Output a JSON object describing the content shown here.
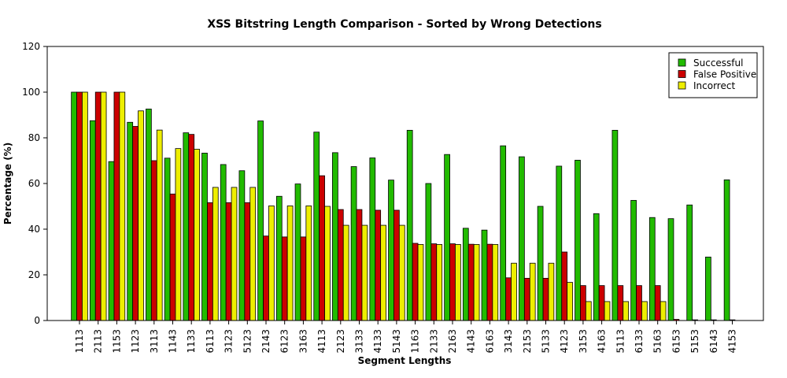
{
  "chart_data": {
    "type": "bar",
    "title": "XSS Bitstring Length Comparison - Sorted by Wrong Detections",
    "xlabel": "Segment Lengths",
    "ylabel": "Percentage (%)",
    "ylim": [
      0,
      120
    ],
    "yticks": [
      "0",
      "20",
      "40",
      "60",
      "80",
      "100",
      "120"
    ],
    "legend_position": "top-right",
    "categories": [
      "1113",
      "2113",
      "1153",
      "1123",
      "3113",
      "1143",
      "1133",
      "6113",
      "3123",
      "5123",
      "2143",
      "6123",
      "3163",
      "4113",
      "2123",
      "3133",
      "4133",
      "5143",
      "1163",
      "2133",
      "2163",
      "4143",
      "6163",
      "3143",
      "2153",
      "5133",
      "4123",
      "3153",
      "4163",
      "5113",
      "6133",
      "5163",
      "6153",
      "5153",
      "6143",
      "4153"
    ],
    "series": [
      {
        "name": "Successful",
        "color": "#22bb00",
        "values": [
          100,
          87.5,
          69.6,
          86.8,
          92.6,
          71.1,
          82.2,
          73.3,
          68.3,
          65.6,
          87.4,
          54.4,
          59.8,
          82.5,
          73.5,
          67.4,
          71.2,
          61.5,
          83.3,
          60,
          72.7,
          40.4,
          39.6,
          76.5,
          71.7,
          50,
          67.6,
          70.2,
          46.8,
          83.3,
          52.6,
          45.1,
          44.6,
          50.6,
          27.8,
          61.6
        ]
      },
      {
        "name": "False Positive",
        "color": "#cc0000",
        "values": [
          100,
          100,
          100,
          85,
          70,
          55.4,
          81.5,
          51.6,
          51.6,
          51.6,
          37,
          36.6,
          36.6,
          63.4,
          48.6,
          48.6,
          48.3,
          48.3,
          33.8,
          33.6,
          33.6,
          33.4,
          33.4,
          18.7,
          18.5,
          18.5,
          30,
          15.3,
          15.3,
          15.3,
          15.3,
          15.3,
          0.5,
          0.3,
          0.3,
          0.3
        ]
      },
      {
        "name": "Incorrect",
        "color": "#eeee00",
        "values": [
          100,
          100,
          100,
          91.8,
          83.4,
          75.3,
          75,
          58.3,
          58.3,
          58.3,
          50.2,
          50.2,
          50.2,
          50,
          41.7,
          41.7,
          41.7,
          41.7,
          33.3,
          33.3,
          33.3,
          33.3,
          33.3,
          25.1,
          25.1,
          25.1,
          16.7,
          8.3,
          8.3,
          8.3,
          8.3,
          8.3,
          0,
          0,
          0,
          0
        ]
      }
    ]
  }
}
